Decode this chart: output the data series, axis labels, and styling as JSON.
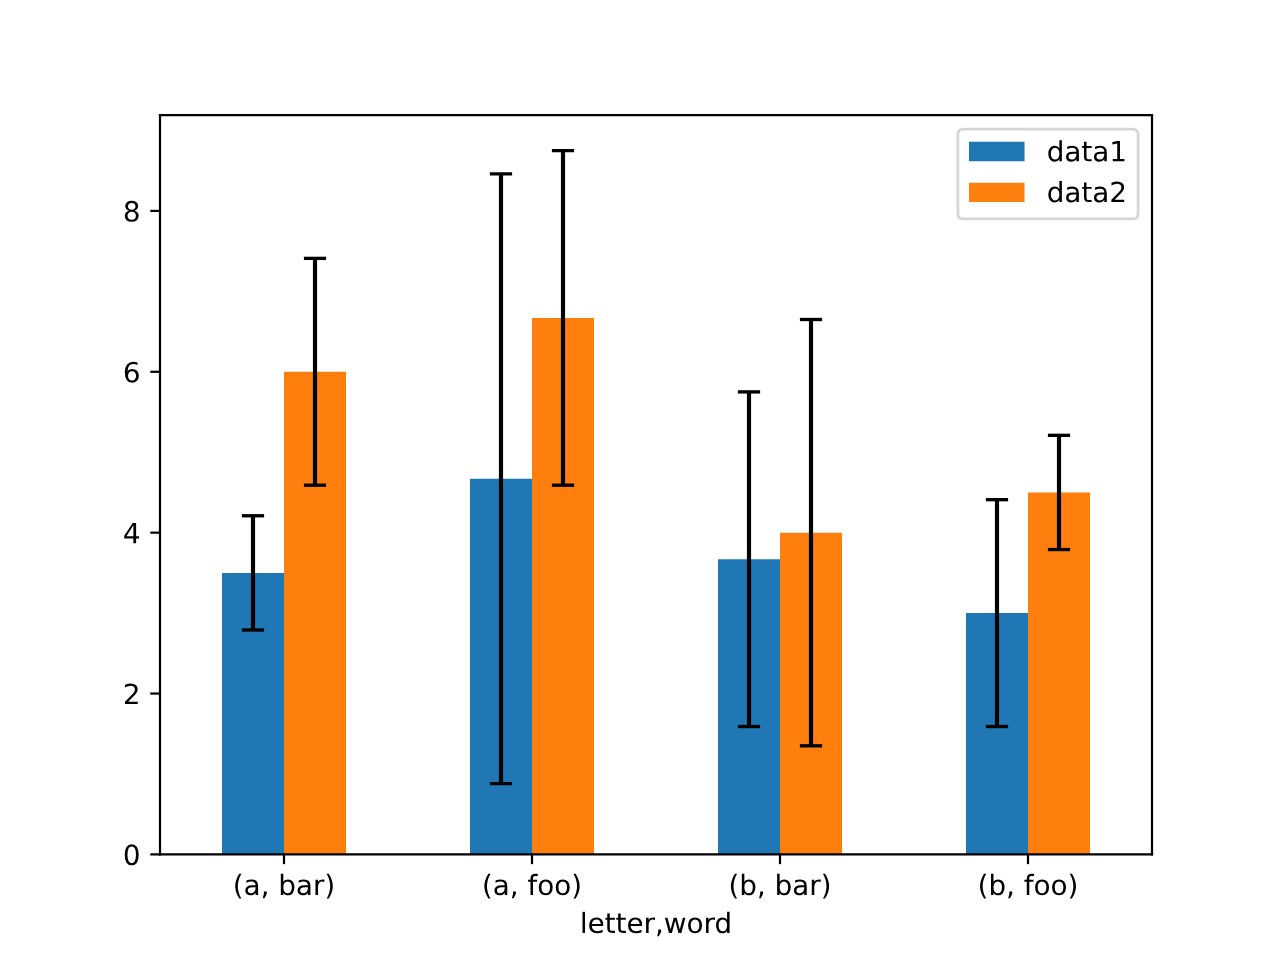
{
  "chart_data": {
    "type": "bar",
    "xlabel": "letter,word",
    "categories": [
      "(a, bar)",
      "(a, foo)",
      "(b, bar)",
      "(b, foo)"
    ],
    "series": [
      {
        "name": "data1",
        "color": "#1f77b4",
        "values": [
          3.5,
          4.67,
          3.67,
          3.0
        ],
        "errors": [
          0.71,
          3.79,
          2.08,
          1.41
        ]
      },
      {
        "name": "data2",
        "color": "#ff7f0e",
        "values": [
          6.0,
          6.67,
          4.0,
          4.5
        ],
        "errors": [
          1.41,
          2.08,
          2.65,
          0.71
        ]
      }
    ],
    "ylim": [
      0,
      9.19
    ],
    "yticks": [
      0,
      2,
      4,
      6,
      8
    ],
    "grid": false,
    "legend": "upper right"
  }
}
